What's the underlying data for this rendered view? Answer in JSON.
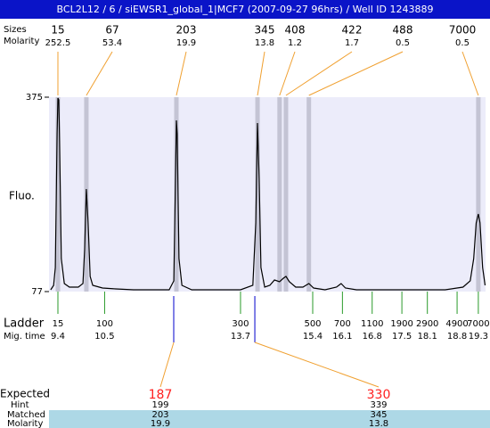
{
  "title": "BCL2L12 / 6 / siEWSR1_global_1|MCF7 (2007-09-27 96hrs) / Well ID 1243889",
  "peak_table": {
    "labels": [
      "Sizes",
      "Molarity"
    ],
    "peaks": [
      {
        "size": 15,
        "molarity": 252.5,
        "mig_time": 9.4
      },
      {
        "size": 67,
        "molarity": 53.4,
        "mig_time": 10.07
      },
      {
        "size": 203,
        "molarity": 19.9,
        "mig_time": 12.19
      },
      {
        "size": 345,
        "molarity": 13.8,
        "mig_time": 14.1
      },
      {
        "size": 408,
        "molarity": 1.2,
        "mig_time": 14.62
      },
      {
        "size": 422,
        "molarity": 1.7,
        "mig_time": 14.77
      },
      {
        "size": 488,
        "molarity": 0.5,
        "mig_time": 15.31
      },
      {
        "size": 7000,
        "molarity": 0.5,
        "mig_time": 19.3
      }
    ]
  },
  "chart_data": {
    "type": "line",
    "ylabel": "Fluo.",
    "color": "#000000",
    "ylim": [
      77,
      375
    ],
    "yticks": [
      375,
      77
    ],
    "xlim": [
      9.19,
      19.47
    ],
    "x": [
      9.23,
      9.3,
      9.34,
      9.38,
      9.4,
      9.42,
      9.44,
      9.48,
      9.55,
      9.67,
      9.88,
      9.99,
      10.03,
      10.07,
      10.11,
      10.16,
      10.22,
      10.45,
      10.76,
      11.18,
      11.71,
      12.02,
      12.13,
      12.17,
      12.19,
      12.21,
      12.25,
      12.32,
      12.55,
      13.07,
      13.7,
      13.99,
      14.06,
      14.1,
      14.14,
      14.18,
      14.27,
      14.39,
      14.5,
      14.62,
      14.71,
      14.77,
      14.85,
      15.0,
      15.17,
      15.31,
      15.42,
      15.69,
      15.96,
      16.07,
      16.17,
      16.43,
      17.26,
      17.89,
      18.52,
      18.94,
      19.11,
      19.19,
      19.25,
      19.3,
      19.34,
      19.4,
      19.46
    ],
    "values": [
      79.7,
      86.6,
      113.9,
      319.0,
      373.6,
      370.9,
      305.3,
      127.6,
      89.3,
      83.8,
      83.8,
      89.3,
      141.2,
      234.2,
      182.3,
      100.2,
      86.6,
      82.5,
      81.1,
      79.7,
      79.7,
      79.7,
      93.4,
      250.6,
      339.5,
      319.0,
      127.6,
      86.6,
      79.7,
      79.7,
      79.7,
      86.6,
      182.3,
      335.4,
      250.6,
      113.9,
      83.8,
      86.6,
      94.8,
      92.0,
      97.5,
      100.2,
      92.0,
      83.8,
      83.8,
      89.3,
      82.5,
      79.7,
      83.8,
      89.3,
      82.5,
      79.7,
      79.7,
      79.7,
      79.7,
      83.8,
      93.4,
      127.6,
      182.3,
      195.9,
      182.3,
      113.9,
      86.6
    ]
  },
  "ladder": {
    "labels": [
      "Ladder",
      "Mig. time"
    ],
    "sizes": [
      15,
      100,
      300,
      500,
      700,
      1100,
      1900,
      2900,
      4900,
      7000
    ],
    "mig_times": [
      9.4,
      10.5,
      13.7,
      15.4,
      16.1,
      16.8,
      17.5,
      18.1,
      18.8,
      19.3
    ]
  },
  "expected": {
    "labels": [
      "Expected",
      "Hint",
      "Matched",
      "Molarity"
    ],
    "columns": [
      {
        "expected": 187,
        "hint": 199,
        "matched": 203,
        "molarity": 19.9
      },
      {
        "expected": 330,
        "hint": 339,
        "matched": 345,
        "molarity": 13.8
      }
    ]
  }
}
